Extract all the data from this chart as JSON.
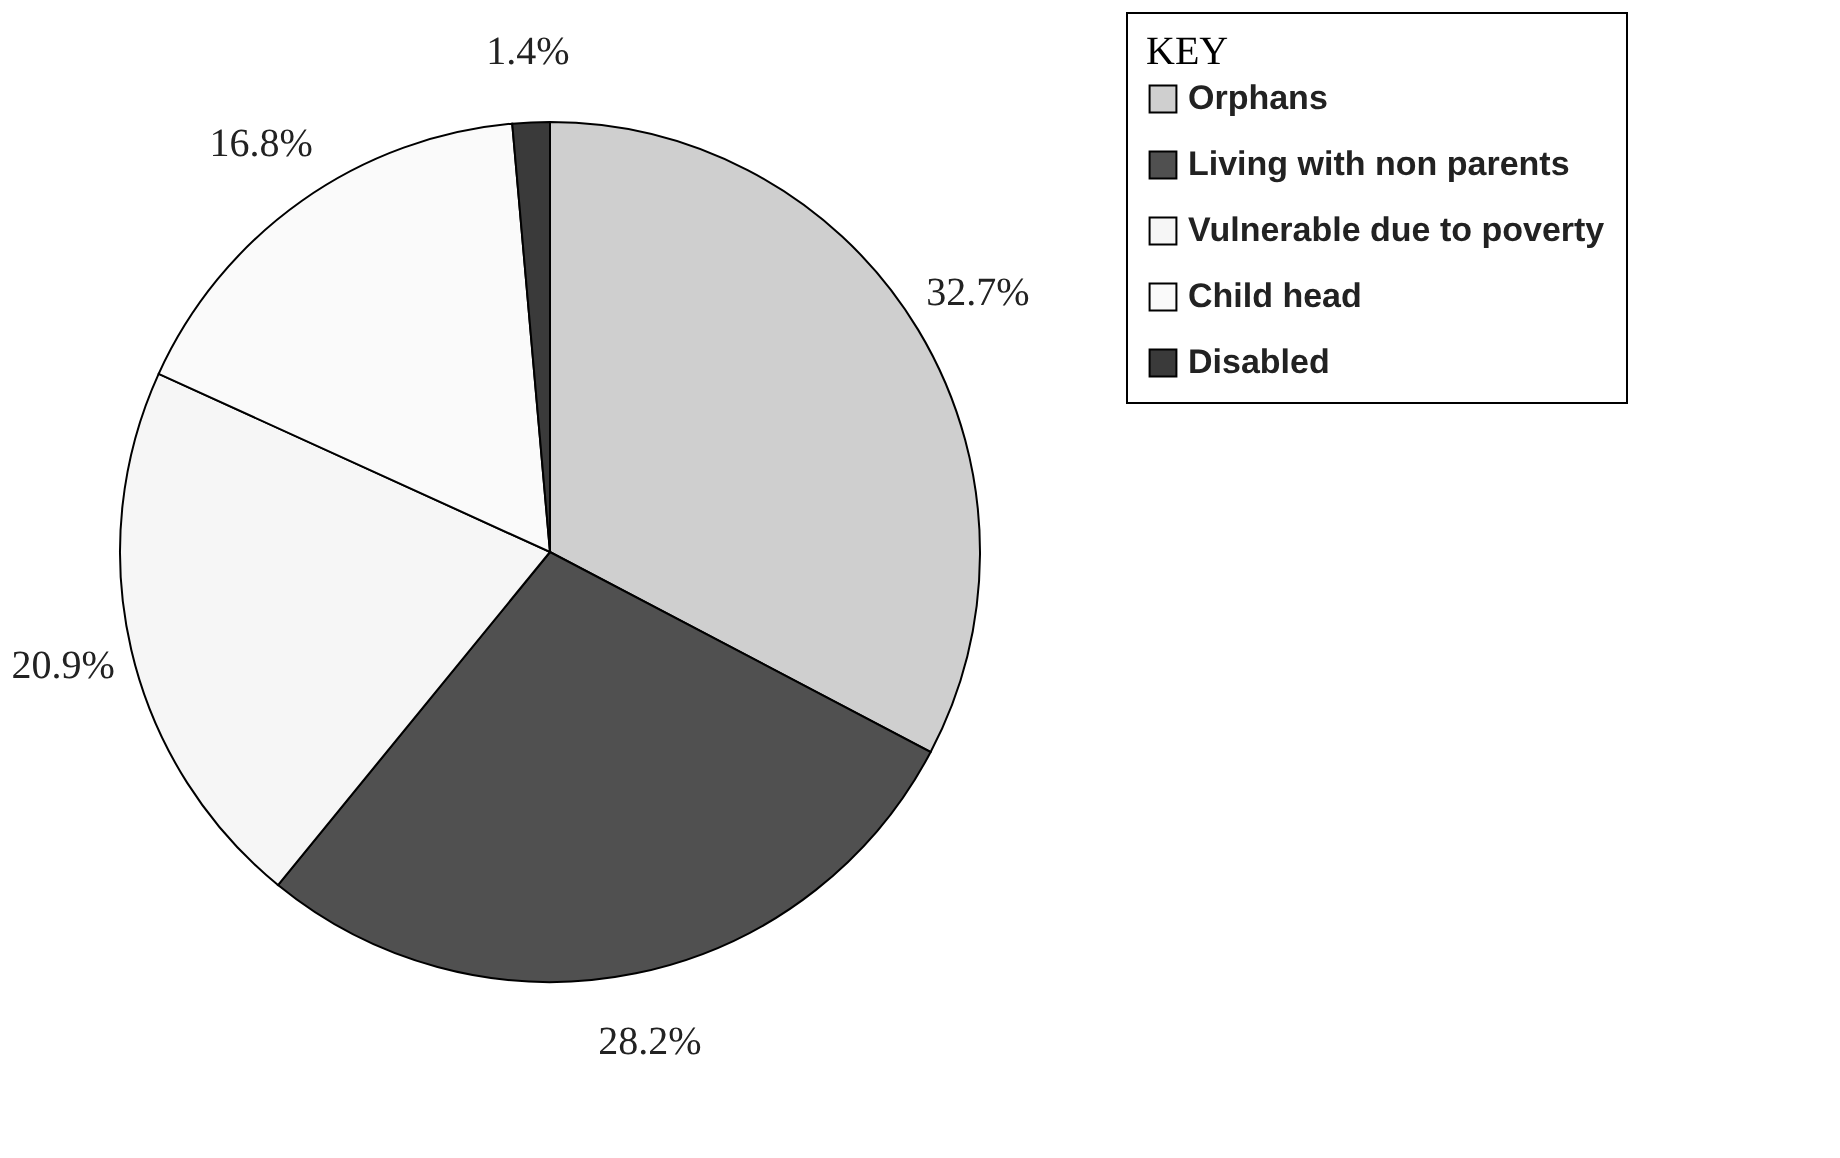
{
  "chart_data": {
    "type": "pie",
    "categories": [
      "Orphans",
      "Living with non parents",
      "Vulnerable due to poverty",
      "Child head",
      "Disabled"
    ],
    "values": [
      32.7,
      28.2,
      20.9,
      16.8,
      1.4
    ],
    "colors": [
      "#cfcfcf",
      "#505050",
      "#f6f6f6",
      "#fafafa",
      "#3a3a3a"
    ],
    "value_labels": [
      "32.7%",
      "28.2%",
      "20.9%",
      "16.8%",
      "1.4%"
    ],
    "legend_title": "KEY",
    "legend": "right"
  }
}
